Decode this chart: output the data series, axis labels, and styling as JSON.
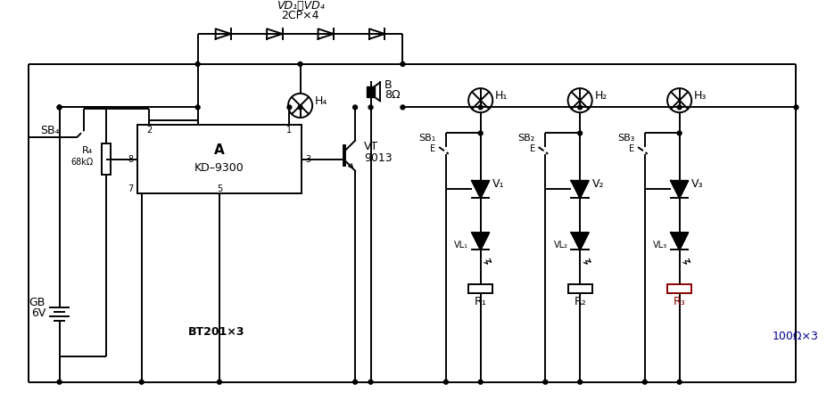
{
  "bg_color": "#ffffff",
  "line_color": "#000000",
  "fig_width": 9.36,
  "fig_height": 4.5,
  "dpi": 100,
  "labels": {
    "VD_label": "VD₁～VD₄",
    "VD_sublabel": "2CP×4",
    "H4_label": "H₄",
    "A_label": "A",
    "A_sublabel": "KD–9300",
    "pin2": "2",
    "pin1": "1",
    "pin3": "3",
    "pin5": "5",
    "pin7": "7",
    "pin8": "8",
    "B_label": "B",
    "B_sublabel": "8Ω",
    "VT_label": "VT",
    "VT_sublabel": "9013",
    "SB4_label": "SB₄",
    "R4_label": "R₄",
    "R4_sublabel": "68kΩ",
    "GB_label": "GB",
    "GB_sublabel": "6V",
    "BT_label": "BT201×3",
    "H1_label": "H₁",
    "H2_label": "H₂",
    "H3_label": "H₃",
    "SB1_label": "SB₁",
    "SB2_label": "SB₂",
    "SB3_label": "SB₃",
    "V1_label": "V₁",
    "V2_label": "V₂",
    "V3_label": "V₃",
    "VL1_label": "VL₁",
    "VL2_label": "VL₂",
    "VL3_label": "VL₃",
    "R1_label": "R₁",
    "R2_label": "R₂",
    "R3_label": "R₃",
    "R3_color": "#8B0000",
    "resistor_label": "100Ω×3",
    "resistor_color": "#00008B"
  }
}
